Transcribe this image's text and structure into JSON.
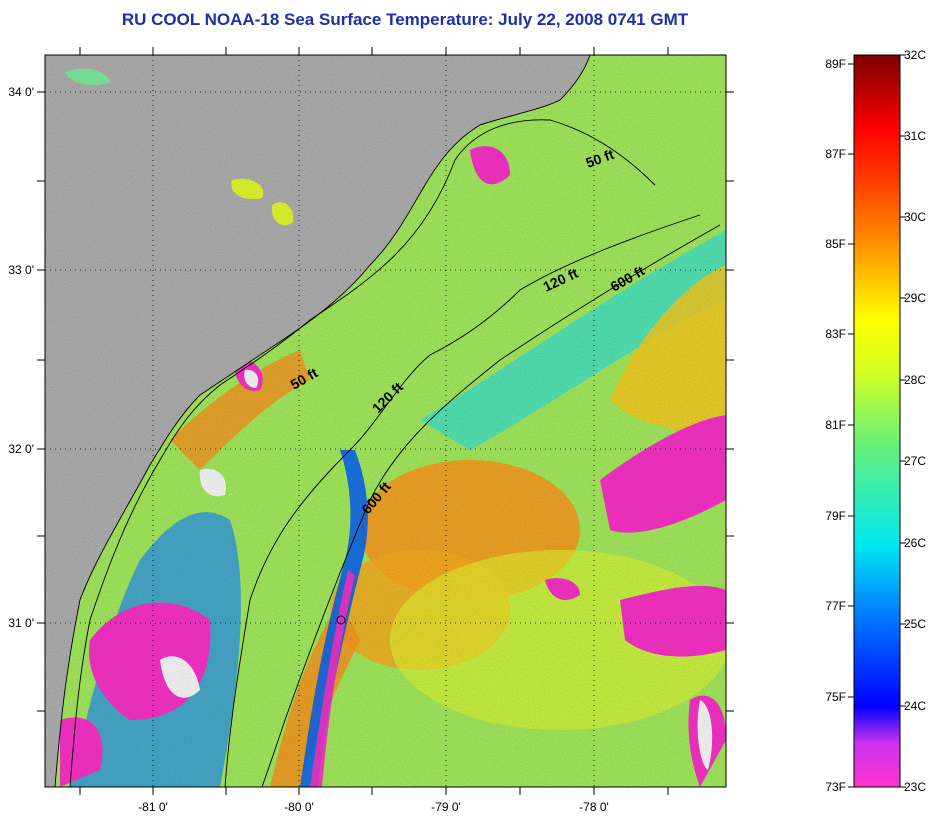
{
  "title": "RU COOL  NOAA-18  Sea Surface Temperature:  July 22, 2008 0741 GMT",
  "longitude_ticks": [
    "-81 0'",
    "-80 0'",
    "-79 0'",
    "-78 0'"
  ],
  "latitude_ticks": [
    "34 0'",
    "33 0'",
    "32 0'",
    "31 0'"
  ],
  "isobath_labels": [
    "50 ft",
    "50 ft",
    "120 ft",
    "120 ft",
    "600 ft",
    "600 ft"
  ],
  "colorbar": {
    "fahrenheit": [
      "89F",
      "87F",
      "85F",
      "83F",
      "81F",
      "79F",
      "77F",
      "75F",
      "73F"
    ],
    "celsius": [
      "32C",
      "31C",
      "30C",
      "29C",
      "28C",
      "27C",
      "26C",
      "25C",
      "24C",
      "23C"
    ]
  },
  "colors": {
    "land": "#b4b4b4",
    "title": "#1f2fa8",
    "cloud_mask": "#ff33cc",
    "warm_core": "#ff9920",
    "cool_band": "#00e0f0"
  }
}
